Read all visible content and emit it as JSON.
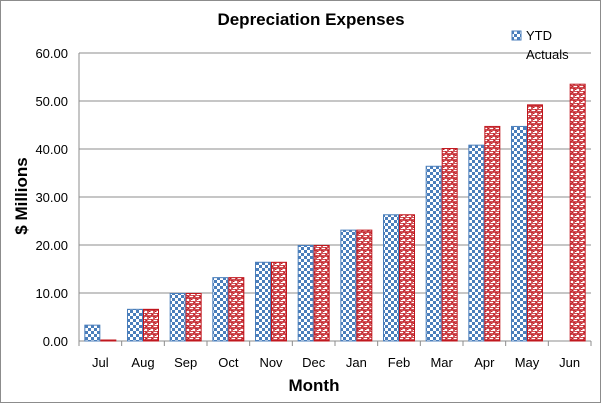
{
  "chart_data": {
    "type": "bar",
    "title": "Depreciation Expenses",
    "xlabel": "Month",
    "ylabel": "$ Millions",
    "categories": [
      "Jul",
      "Aug",
      "Sep",
      "Oct",
      "Nov",
      "Dec",
      "Jan",
      "Feb",
      "Mar",
      "Apr",
      "May",
      "Jun"
    ],
    "yticks": [
      "0.00",
      "10.00",
      "20.00",
      "30.00",
      "40.00",
      "50.00",
      "60.00"
    ],
    "ylim": [
      0,
      60
    ],
    "grid": true,
    "legend_position": "top-right",
    "series": [
      {
        "name": "YTD Actuals",
        "pattern": "checker",
        "color": "#4a7ebb",
        "values": [
          3.3,
          6.6,
          9.9,
          13.2,
          16.4,
          19.9,
          23.1,
          26.3,
          36.4,
          40.8,
          44.7,
          null
        ]
      },
      {
        "name": "",
        "pattern": "brick",
        "color": "#c0171e",
        "values": [
          0.2,
          6.6,
          9.9,
          13.2,
          16.4,
          19.9,
          23.1,
          26.3,
          40.1,
          44.7,
          49.2,
          53.5
        ]
      }
    ]
  }
}
